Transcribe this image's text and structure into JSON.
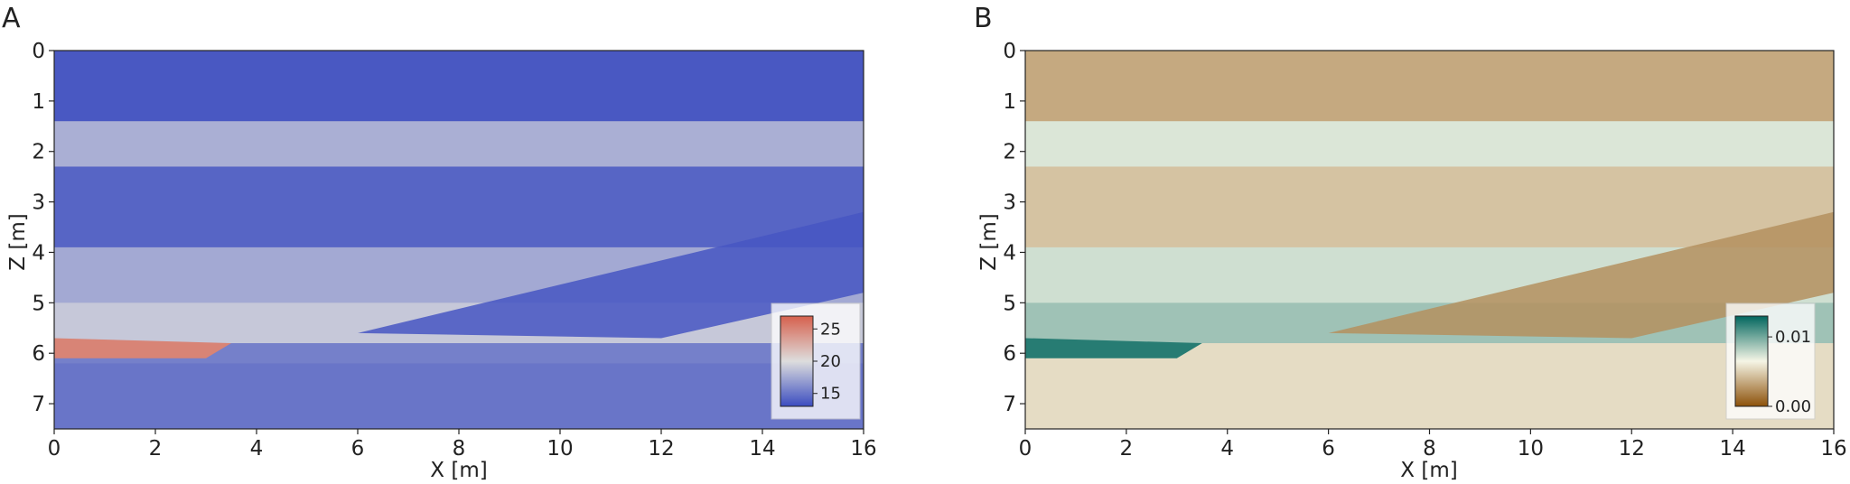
{
  "figure": {
    "panels": [
      {
        "letter": "A"
      },
      {
        "letter": "B"
      }
    ]
  },
  "chart_data": [
    {
      "type": "heatmap",
      "panel": "A",
      "title": "",
      "xlabel": "X [m]",
      "ylabel": "Z [m]",
      "xlim": [
        0,
        16
      ],
      "ylim": [
        7.5,
        0
      ],
      "y_axis_inverted": true,
      "xticks": [
        0,
        2,
        4,
        6,
        8,
        10,
        12,
        14,
        16
      ],
      "yticks": [
        0,
        1,
        2,
        3,
        4,
        5,
        6,
        7
      ],
      "colormap": "coolwarm",
      "colors": {
        "low": "#3b4cc0",
        "mid": "#dddddd",
        "high": "#d6604d"
      },
      "colorbar": {
        "ticks": [
          15,
          20,
          25
        ],
        "range": [
          13,
          27
        ],
        "placement": "bottom-right"
      },
      "layers": [
        {
          "top": 0.0,
          "bottom": 1.4,
          "value": 13.6
        },
        {
          "top": 1.4,
          "bottom": 2.3,
          "value": 17.8
        },
        {
          "top": 2.3,
          "bottom": 3.9,
          "value": 14.2
        },
        {
          "top": 3.9,
          "bottom": 5.0,
          "value": 17.5
        },
        {
          "top": 5.0,
          "bottom": 5.8,
          "value": 19.0
        },
        {
          "top": 5.8,
          "bottom": 6.2,
          "value": 15.5
        },
        {
          "top": 6.2,
          "bottom": 7.5,
          "value": 15.0
        }
      ],
      "features": [
        {
          "kind": "high-value layer",
          "x": [
            0,
            3.5
          ],
          "z": [
            5.7,
            6.1
          ],
          "value": 25.0
        },
        {
          "kind": "dipping low-value body",
          "x": [
            6,
            16
          ],
          "z": [
            3.2,
            5.6
          ],
          "value": 13.5
        }
      ]
    },
    {
      "type": "heatmap",
      "panel": "B",
      "title": "",
      "xlabel": "X [m]",
      "ylabel": "Z [m]",
      "xlim": [
        0,
        16
      ],
      "ylim": [
        7.5,
        0
      ],
      "y_axis_inverted": true,
      "xticks": [
        0,
        2,
        4,
        6,
        8,
        10,
        12,
        14,
        16
      ],
      "yticks": [
        0,
        1,
        2,
        3,
        4,
        5,
        6,
        7
      ],
      "colormap": "BrBG",
      "colors": {
        "low": "#8c510a",
        "mid": "#f5f5e6",
        "high": "#01665e"
      },
      "colorbar": {
        "ticks": [
          0.0,
          0.01
        ],
        "tick_labels": [
          "0.00",
          "0.01"
        ],
        "range": [
          0.0,
          0.013
        ],
        "placement": "bottom-right"
      },
      "layers": [
        {
          "top": 0.0,
          "bottom": 1.4,
          "value": 0.0035
        },
        {
          "top": 1.4,
          "bottom": 2.3,
          "value": 0.0072
        },
        {
          "top": 2.3,
          "bottom": 3.9,
          "value": 0.0045
        },
        {
          "top": 3.9,
          "bottom": 5.0,
          "value": 0.0075
        },
        {
          "top": 5.0,
          "bottom": 5.8,
          "value": 0.0088
        },
        {
          "top": 5.8,
          "bottom": 6.2,
          "value": 0.0055
        },
        {
          "top": 6.2,
          "bottom": 7.5,
          "value": 0.0055
        }
      ],
      "features": [
        {
          "kind": "high-value layer",
          "x": [
            0,
            3.5
          ],
          "z": [
            5.7,
            6.1
          ],
          "value": 0.012
        },
        {
          "kind": "dipping low-value body",
          "x": [
            6,
            16
          ],
          "z": [
            3.2,
            5.6
          ],
          "value": 0.0025
        }
      ]
    }
  ]
}
